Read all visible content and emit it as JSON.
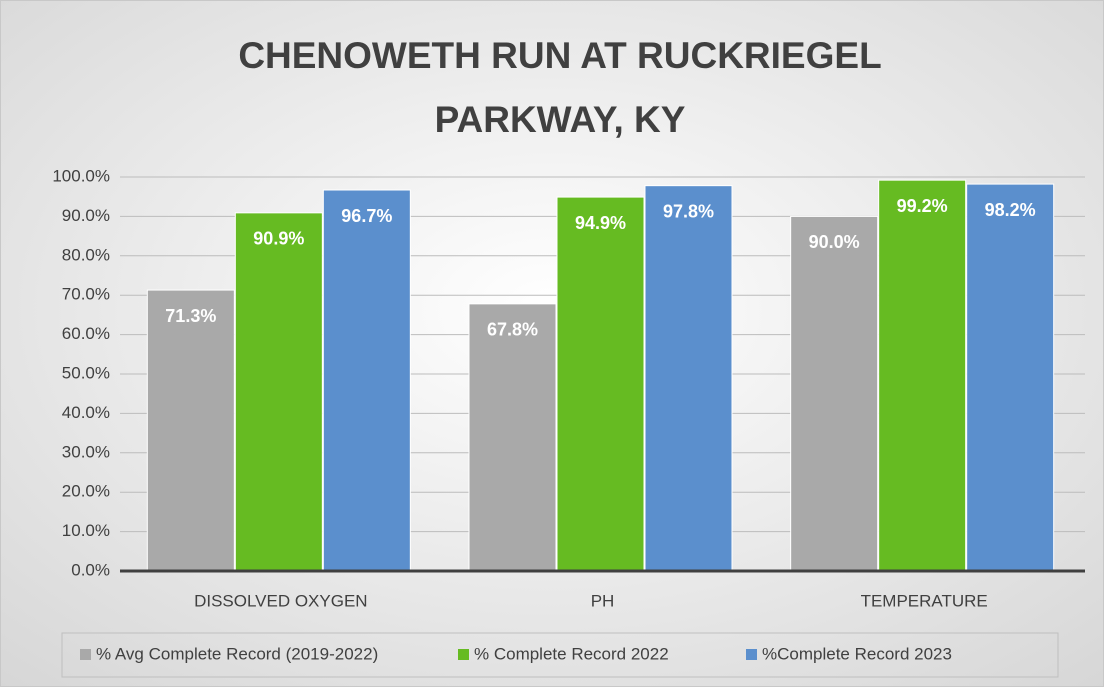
{
  "chart_data": {
    "type": "bar",
    "title": [
      "CHENOWETH RUN AT RUCKRIEGEL",
      "PARKWAY, KY"
    ],
    "categories": [
      "DISSOLVED OXYGEN",
      "PH",
      "TEMPERATURE"
    ],
    "series": [
      {
        "name": "% Avg Complete Record (2019-2022)",
        "color": "#a9a9a9",
        "values": [
          71.3,
          67.8,
          90.0
        ],
        "value_labels": [
          "71.3%",
          "67.8%",
          "90.0%"
        ]
      },
      {
        "name": "% Complete Record 2022",
        "color": "#66bb22",
        "values": [
          90.9,
          94.9,
          99.2
        ],
        "value_labels": [
          "90.9%",
          "94.9%",
          "99.2%"
        ]
      },
      {
        "name": "%Complete Record 2023",
        "color": "#5b8fcd",
        "values": [
          96.7,
          97.8,
          98.2
        ],
        "value_labels": [
          "96.7%",
          "97.8%",
          "98.2%"
        ]
      }
    ],
    "ylim": [
      0,
      100
    ],
    "yticks": [
      {
        "value": 0,
        "label": "0.0%"
      },
      {
        "value": 10,
        "label": "10.0%"
      },
      {
        "value": 20,
        "label": "20.0%"
      },
      {
        "value": 30,
        "label": "30.0%"
      },
      {
        "value": 40,
        "label": "40.0%"
      },
      {
        "value": 50,
        "label": "50.0%"
      },
      {
        "value": 60,
        "label": "60.0%"
      },
      {
        "value": 70,
        "label": "70.0%"
      },
      {
        "value": 80,
        "label": "80.0%"
      },
      {
        "value": 90,
        "label": "90.0%"
      },
      {
        "value": 100,
        "label": "100.0%"
      }
    ],
    "grid": true,
    "legend": "bottom"
  }
}
